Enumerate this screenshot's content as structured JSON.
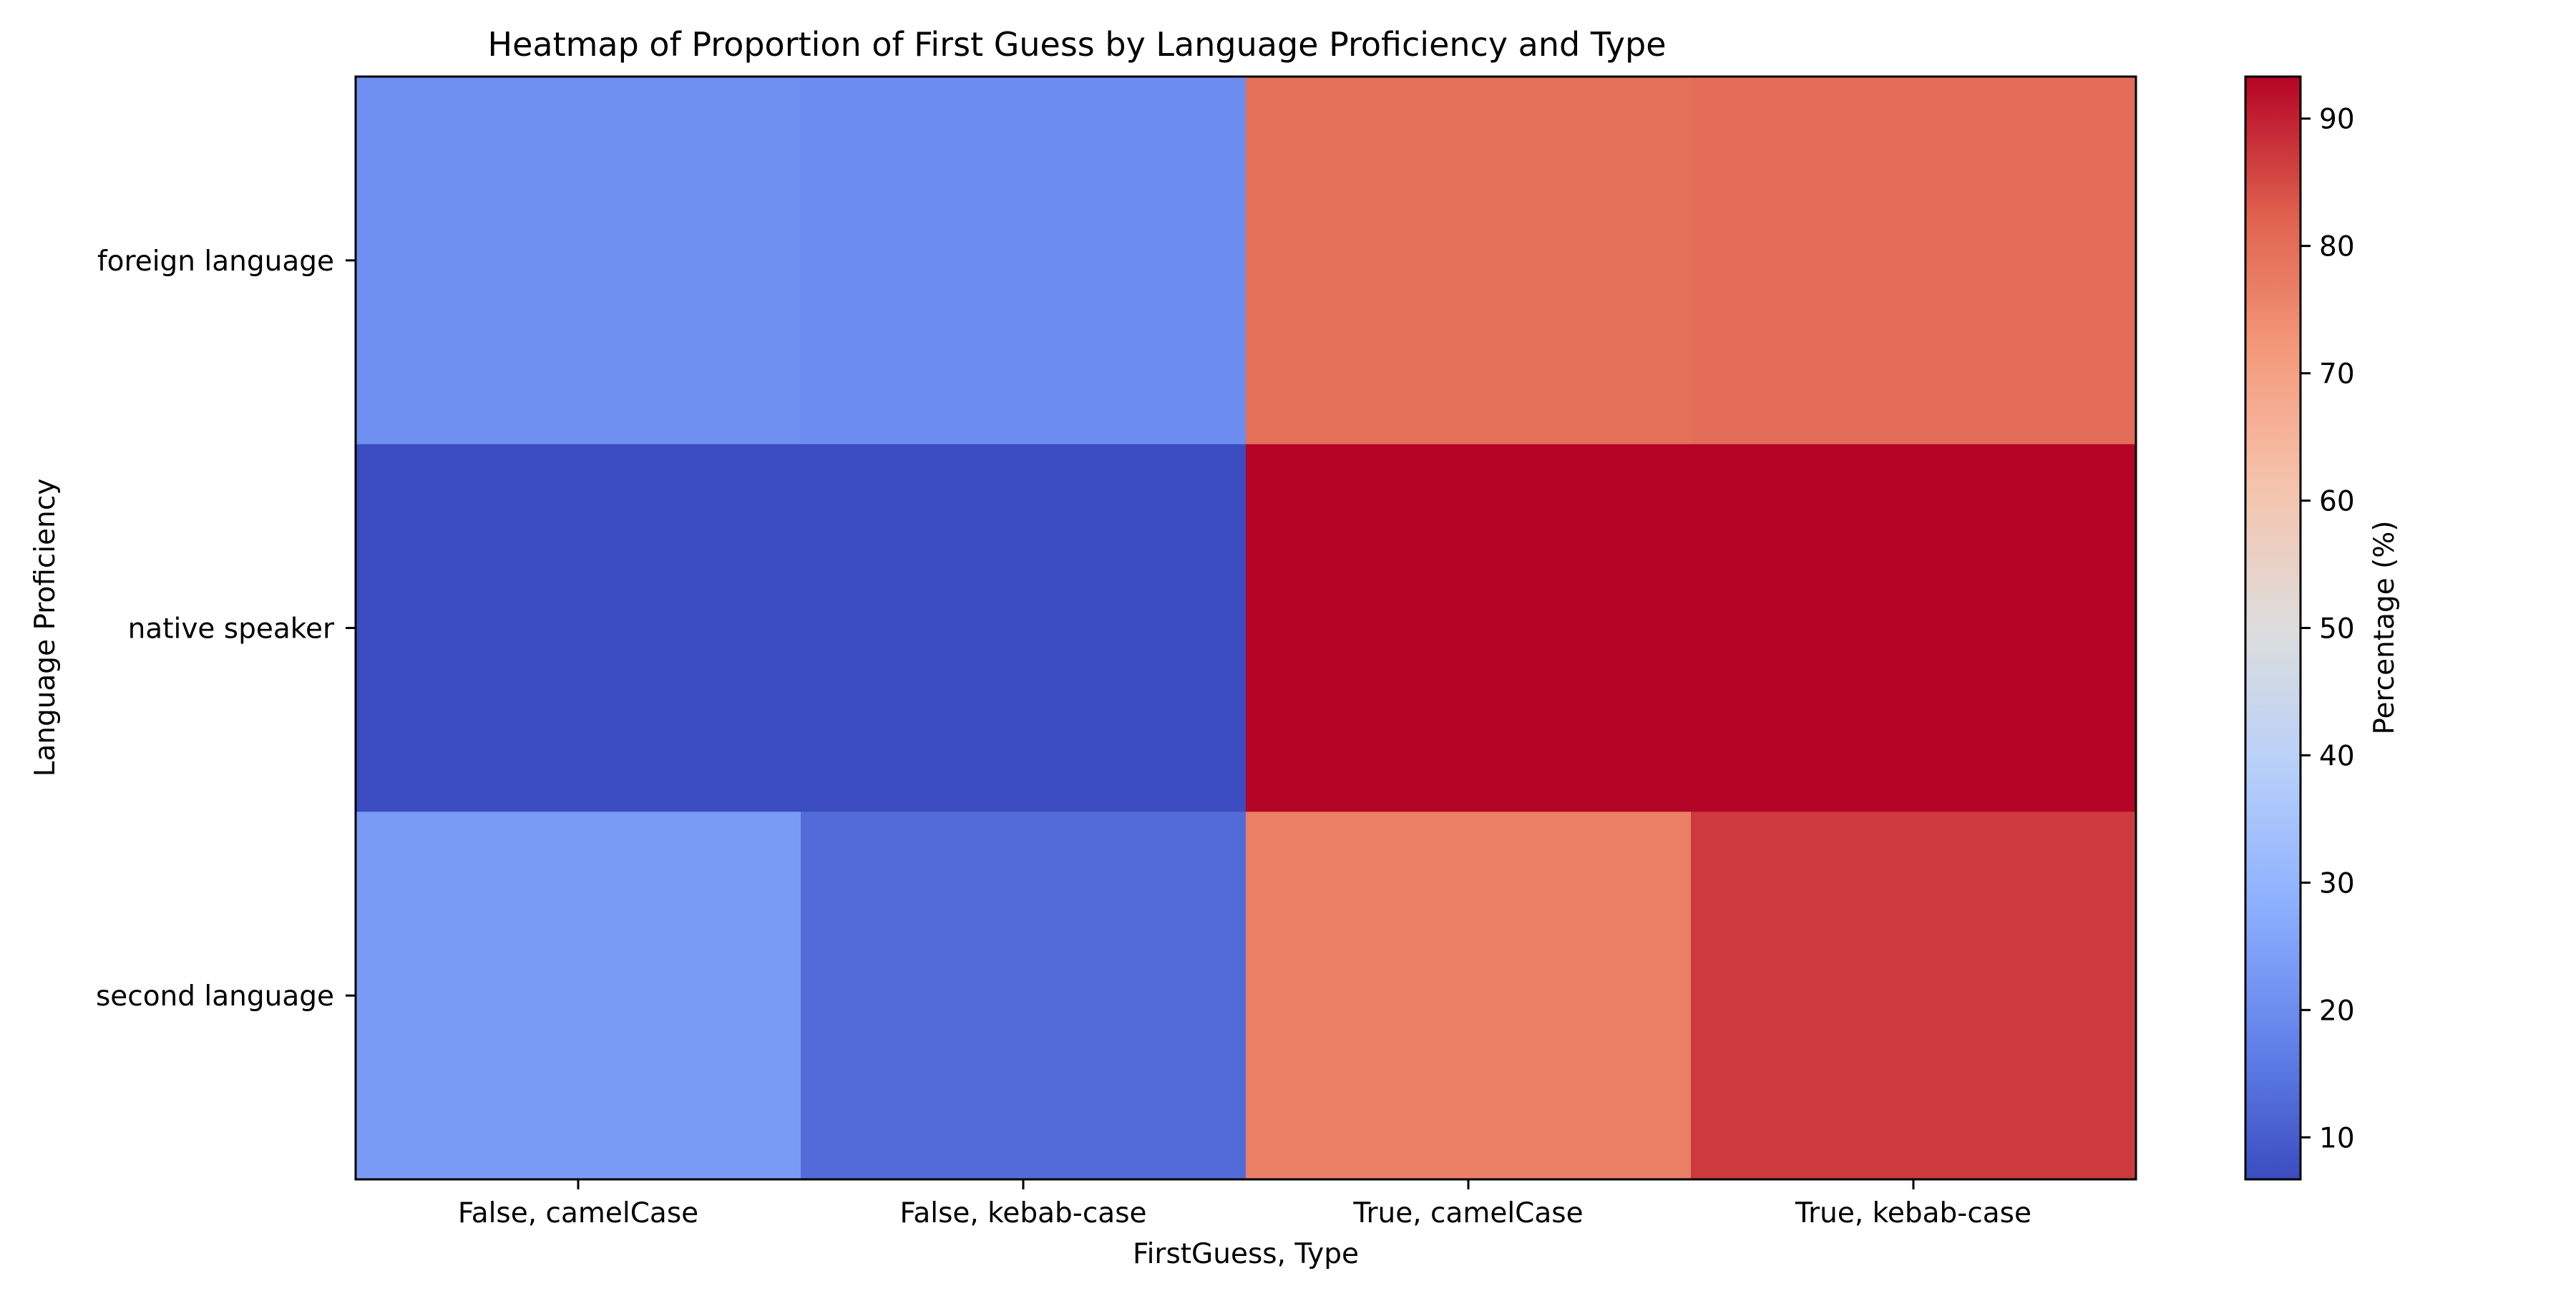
{
  "chart_data": {
    "type": "heatmap",
    "title": "Heatmap of Proportion of First Guess by Language Proficiency and Type",
    "xlabel": "FirstGuess, Type",
    "ylabel": "Language Proficiency",
    "x_categories": [
      "False, camelCase",
      "False, kebab-case",
      "True, camelCase",
      "True, kebab-case"
    ],
    "y_categories": [
      "foreign language",
      "native speaker",
      "second language"
    ],
    "values": [
      [
        20.5,
        20.0,
        79.5,
        80.0
      ],
      [
        6.7,
        6.7,
        93.3,
        93.3
      ],
      [
        23.5,
        13.0,
        76.5,
        87.0
      ]
    ],
    "colorbar": {
      "label": "Percentage (%)",
      "range": [
        6.7,
        93.3
      ],
      "ticks": [
        10,
        20,
        30,
        40,
        50,
        60,
        70,
        80,
        90
      ],
      "colormap": "coolwarm"
    },
    "grid": false
  }
}
